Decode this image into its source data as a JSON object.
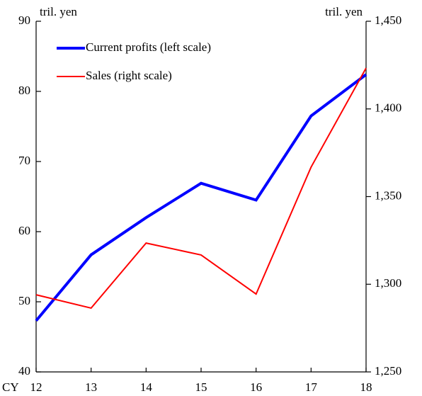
{
  "chart_data": {
    "type": "line",
    "ylabel": "tril. yen",
    "y2label": "tril. yen",
    "xlabel": "CY",
    "categories": [
      "12",
      "13",
      "14",
      "15",
      "16",
      "17",
      "18"
    ],
    "series": [
      {
        "name": "Current profits (left scale)",
        "color": "#0000ff",
        "values": [
          47.3,
          56.7,
          62.0,
          66.9,
          64.5,
          76.5,
          82.4
        ]
      },
      {
        "name": "Sales (right scale)",
        "color": "#ff0000",
        "axis": "y2",
        "values": [
          1294,
          1286.4,
          1323.5,
          1316.7,
          1294.4,
          1366.8,
          1423.3
        ]
      }
    ],
    "ylim": [
      40,
      90
    ],
    "yticks": [
      40,
      50,
      60,
      70,
      80,
      90
    ],
    "y2lim": [
      1250,
      1450
    ],
    "y2ticks": [
      {
        "value": 1250,
        "label": "1,250"
      },
      {
        "value": 1300,
        "label": "1,300"
      },
      {
        "value": 1350,
        "label": "1,350"
      },
      {
        "value": 1400,
        "label": "1,400"
      },
      {
        "value": 1450,
        "label": "1,450"
      }
    ],
    "legend": "upper left"
  }
}
